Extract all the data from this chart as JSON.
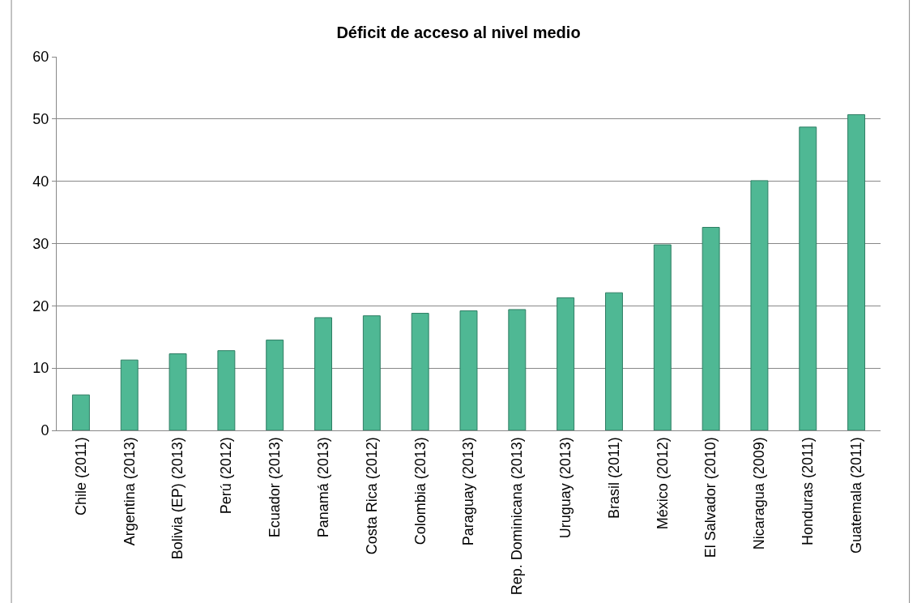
{
  "chart_data": {
    "type": "bar",
    "title": "Déficit de acceso al nivel medio",
    "categories": [
      "Chile (2011)",
      "Argentina (2013)",
      "Bolivia (EP) (2013)",
      "Perú (2012)",
      "Ecuador (2013)",
      "Panamá (2013)",
      "Costa Rica (2012)",
      "Colombia (2013)",
      "Paraguay (2013)",
      "Rep. Dominicana (2013)",
      "Uruguay (2013)",
      "Brasil (2011)",
      "México (2012)",
      "El Salvador (2010)",
      "Nicaragua (2009)",
      "Honduras (2011)",
      "Guatemala (2011)"
    ],
    "values": [
      5.7,
      11.3,
      12.3,
      12.8,
      14.5,
      18.1,
      18.4,
      18.8,
      19.2,
      19.4,
      21.3,
      22.1,
      29.8,
      32.6,
      40.1,
      48.7,
      50.7
    ],
    "color": "#4fb894",
    "ylim": [
      0,
      60
    ],
    "yticks": [
      0,
      10,
      20,
      30,
      40,
      50,
      60
    ],
    "grid": "y",
    "legend": false
  }
}
